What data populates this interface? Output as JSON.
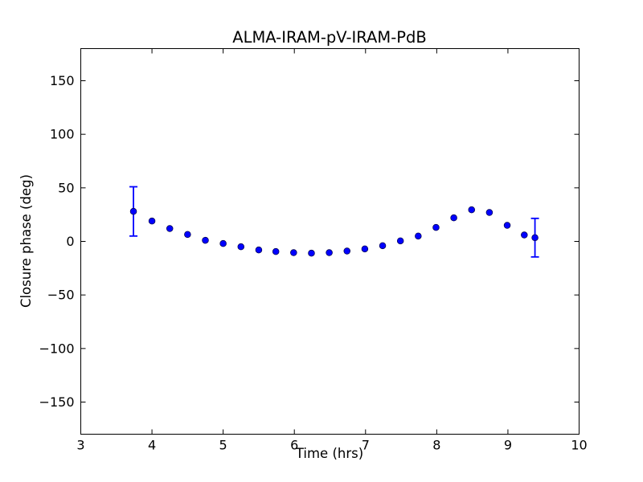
{
  "figure": {
    "background": "#ffffff",
    "frame_color": "#000000"
  },
  "chart_data": {
    "type": "scatter",
    "title": "ALMA-IRAM-pV-IRAM-PdB",
    "xlabel": "Time (hrs)",
    "ylabel": "Closure phase (deg)",
    "xlim": [
      3,
      10
    ],
    "ylim": [
      -180,
      180
    ],
    "xticks": [
      3,
      4,
      5,
      6,
      7,
      8,
      9,
      10
    ],
    "xtick_labels": [
      "3",
      "4",
      "5",
      "6",
      "7",
      "8",
      "9",
      "10"
    ],
    "yticks": [
      -150,
      -100,
      -50,
      0,
      50,
      100,
      150
    ],
    "ytick_labels": [
      "−150",
      "−100",
      "−50",
      "0",
      "50",
      "100",
      "150"
    ],
    "grid": false,
    "legend": null,
    "marker_color": "#0000ff",
    "marker_edge_color": "#000044",
    "errorbar_color": "#0000ff",
    "series": [
      {
        "name": "closure phase",
        "x": [
          3.74,
          4.0,
          4.25,
          4.5,
          4.75,
          5.0,
          5.25,
          5.5,
          5.74,
          5.99,
          6.24,
          6.49,
          6.74,
          6.99,
          7.24,
          7.49,
          7.74,
          7.99,
          8.24,
          8.49,
          8.74,
          8.99,
          9.23,
          9.38
        ],
        "y": [
          28,
          19,
          12,
          6.5,
          1,
          -2,
          -5,
          -8,
          -9.5,
          -10.5,
          -11,
          -10.5,
          -9,
          -7,
          -4,
          0.5,
          5,
          13,
          22,
          29.5,
          27,
          15,
          6,
          3.5
        ],
        "yerr": [
          23,
          0,
          0,
          0,
          0,
          0,
          0,
          0,
          0,
          0,
          0,
          0,
          0,
          0,
          0,
          0,
          0,
          0,
          0,
          0,
          0,
          0,
          0,
          18
        ]
      }
    ]
  }
}
